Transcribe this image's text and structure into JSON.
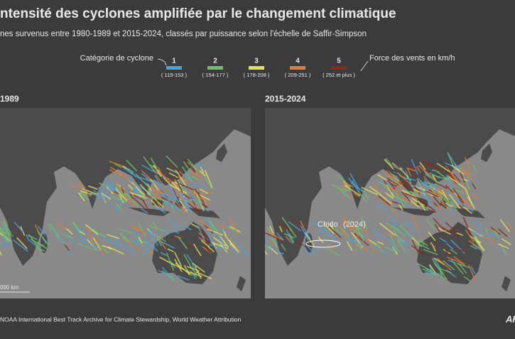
{
  "header": {
    "title": "ntensité des cyclones amplifiée par le changement climatique",
    "subtitle": "nes survenus entre 1980-1989 et 2015-2024, classés par puissance selon l'échelle de Saffir-Simpson"
  },
  "legend": {
    "title": "Catégorie de cyclone",
    "note": "Force des vents en km/h",
    "categories": [
      {
        "label": "1",
        "range": "( 119-153 )",
        "color": "#4aa3dc"
      },
      {
        "label": "2",
        "range": "( 154-177 )",
        "color": "#6dbf6a"
      },
      {
        "label": "3",
        "range": "( 178-208 )",
        "color": "#e6df5c"
      },
      {
        "label": "4",
        "range": "( 209-251 )",
        "color": "#e07b3a"
      },
      {
        "label": "5",
        "range": "( 252 et plus )",
        "color": "#8a2b1a"
      }
    ]
  },
  "panels": [
    {
      "title": "1989",
      "scale": "000 km"
    },
    {
      "title": "2015-2024",
      "annotation": {
        "name": "Chido",
        "year": "(2024)"
      }
    }
  ],
  "footer": {
    "source": "NOAA International Best Track Archive for Climate Stewardship, World Weather Attribution",
    "logo": "AF"
  }
}
